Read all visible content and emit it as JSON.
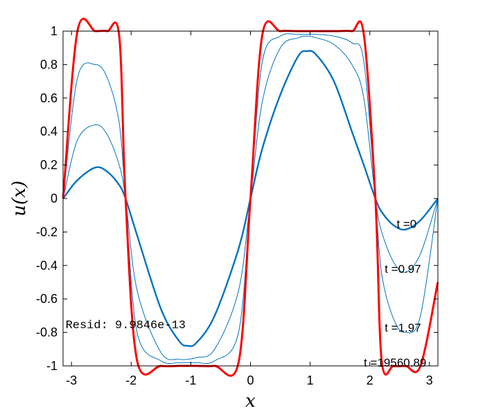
{
  "chart_data": {
    "type": "line",
    "xlabel": "x",
    "ylabel": "u(x)",
    "xlim": [
      -3.14159,
      3.14159
    ],
    "ylim": [
      -1,
      1
    ],
    "xticks": [
      -3,
      -2,
      -1,
      0,
      1,
      2,
      3
    ],
    "xtick_labels": [
      "-3",
      "-2",
      "-1",
      "0",
      "1",
      "2",
      "3"
    ],
    "yticks": [
      1,
      0.8,
      0.6,
      0.4,
      0.2,
      0,
      -0.2,
      -0.4,
      -0.6,
      -0.8,
      -1
    ],
    "ytick_labels": [
      "1",
      "0.8",
      "0.6",
      "0.4",
      "0.2",
      "0",
      "-0.2",
      "-0.4",
      "-0.6",
      "-0.8",
      "-1"
    ],
    "grid": false,
    "x": [
      -3.14,
      -2.9,
      -2.6,
      -2.4,
      -2.2,
      -2.094,
      -1.9,
      -1.5,
      -1.2,
      -1.047,
      -0.9,
      -0.6,
      -0.2,
      0,
      0.2,
      0.5,
      0.8,
      0.95,
      1.1,
      1.4,
      1.7,
      1.9,
      2.094,
      2.2,
      2.4,
      2.6,
      2.85,
      3.14
    ],
    "series": [
      {
        "values": [
          0,
          0.11,
          0.185,
          0.16,
          0.08,
          0,
          -0.22,
          -0.66,
          -0.85,
          -0.88,
          -0.86,
          -0.7,
          -0.3,
          0,
          0.3,
          0.62,
          0.85,
          0.88,
          0.86,
          0.7,
          0.4,
          0.2,
          0,
          -0.08,
          -0.16,
          -0.185,
          -0.13,
          0
        ],
        "color": "#0072bd"
      },
      {
        "values": [
          0,
          0.35,
          0.44,
          0.38,
          0.2,
          0,
          -0.55,
          -0.92,
          -0.96,
          -0.96,
          -0.95,
          -0.9,
          -0.55,
          0,
          0.58,
          0.9,
          0.96,
          0.97,
          0.96,
          0.92,
          0.8,
          0.6,
          0,
          -0.2,
          -0.38,
          -0.44,
          -0.33,
          0
        ],
        "color": "#0072bd"
      },
      {
        "values": [
          0,
          0.72,
          0.8,
          0.72,
          0.45,
          0,
          -0.8,
          -0.97,
          -0.98,
          -0.98,
          -0.98,
          -0.97,
          -0.8,
          0,
          0.82,
          0.97,
          0.98,
          0.98,
          0.98,
          0.97,
          0.93,
          0.82,
          0,
          -0.45,
          -0.72,
          -0.8,
          -0.7,
          0
        ],
        "color": "#0072bd"
      },
      {
        "values": [
          0,
          1,
          1,
          1,
          0.97,
          0,
          -0.97,
          -1,
          -1,
          -1,
          -1,
          -1,
          -0.98,
          0,
          0.98,
          1,
          1,
          1,
          1,
          1,
          1,
          0.98,
          0,
          -0.97,
          -1,
          -1,
          -1,
          -0.5
        ],
        "color": "#ff0000"
      }
    ],
    "annotations": [
      {
        "text": "t =0",
        "x": 2.45,
        "y": -0.15
      },
      {
        "text": "t =0.97",
        "x": 2.25,
        "y": -0.42
      },
      {
        "text": "t =1.97",
        "x": 2.25,
        "y": -0.77
      },
      {
        "text": "t =19560.89",
        "x": 1.9,
        "y": -0.98
      },
      {
        "text": "Resid: 9.9846e-13",
        "x": -3.1,
        "y": -0.75
      }
    ]
  }
}
